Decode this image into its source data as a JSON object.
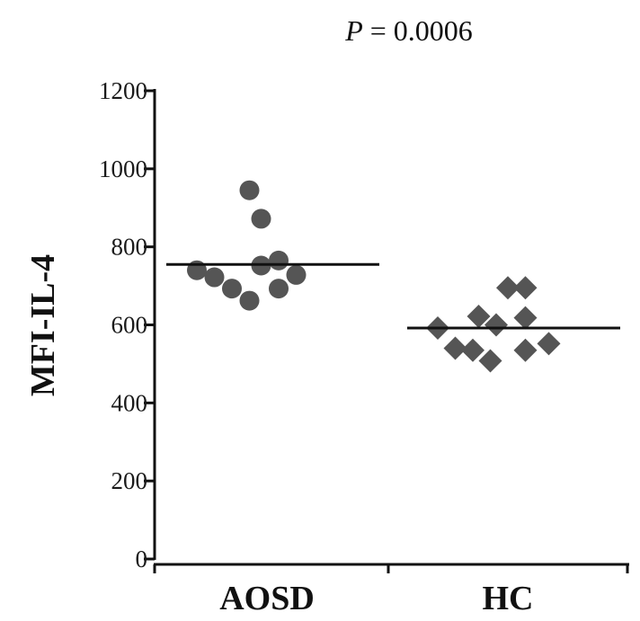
{
  "chart_data": {
    "type": "scatter",
    "annotation": {
      "p_symbol": "P",
      "p_rest": " = 0.0006"
    },
    "ylabel": "MFI-IL-4",
    "ylim": [
      0,
      1200
    ],
    "yticks": [
      "0",
      "200",
      "400",
      "600",
      "800",
      "1000",
      "1200"
    ],
    "categories": [
      "AOSD",
      "HC"
    ],
    "series": [
      {
        "category": "AOSD",
        "marker": "circle",
        "color": "#555555",
        "mean": 755,
        "points": [
          {
            "x": -0.6,
            "y": 740
          },
          {
            "x": -0.45,
            "y": 722
          },
          {
            "x": -0.3,
            "y": 693
          },
          {
            "x": -0.15,
            "y": 945
          },
          {
            "x": -0.15,
            "y": 662
          },
          {
            "x": -0.05,
            "y": 872
          },
          {
            "x": -0.05,
            "y": 752
          },
          {
            "x": 0.1,
            "y": 693
          },
          {
            "x": 0.1,
            "y": 765
          },
          {
            "x": 0.25,
            "y": 728
          }
        ]
      },
      {
        "category": "HC",
        "marker": "diamond",
        "color": "#555555",
        "mean": 592,
        "points": [
          {
            "x": -0.6,
            "y": 592
          },
          {
            "x": -0.45,
            "y": 540
          },
          {
            "x": -0.3,
            "y": 535
          },
          {
            "x": -0.25,
            "y": 622
          },
          {
            "x": -0.1,
            "y": 600
          },
          {
            "x": -0.15,
            "y": 508
          },
          {
            "x": 0.0,
            "y": 695
          },
          {
            "x": 0.15,
            "y": 695
          },
          {
            "x": 0.15,
            "y": 618
          },
          {
            "x": 0.15,
            "y": 535
          },
          {
            "x": 0.35,
            "y": 552
          }
        ]
      }
    ]
  }
}
